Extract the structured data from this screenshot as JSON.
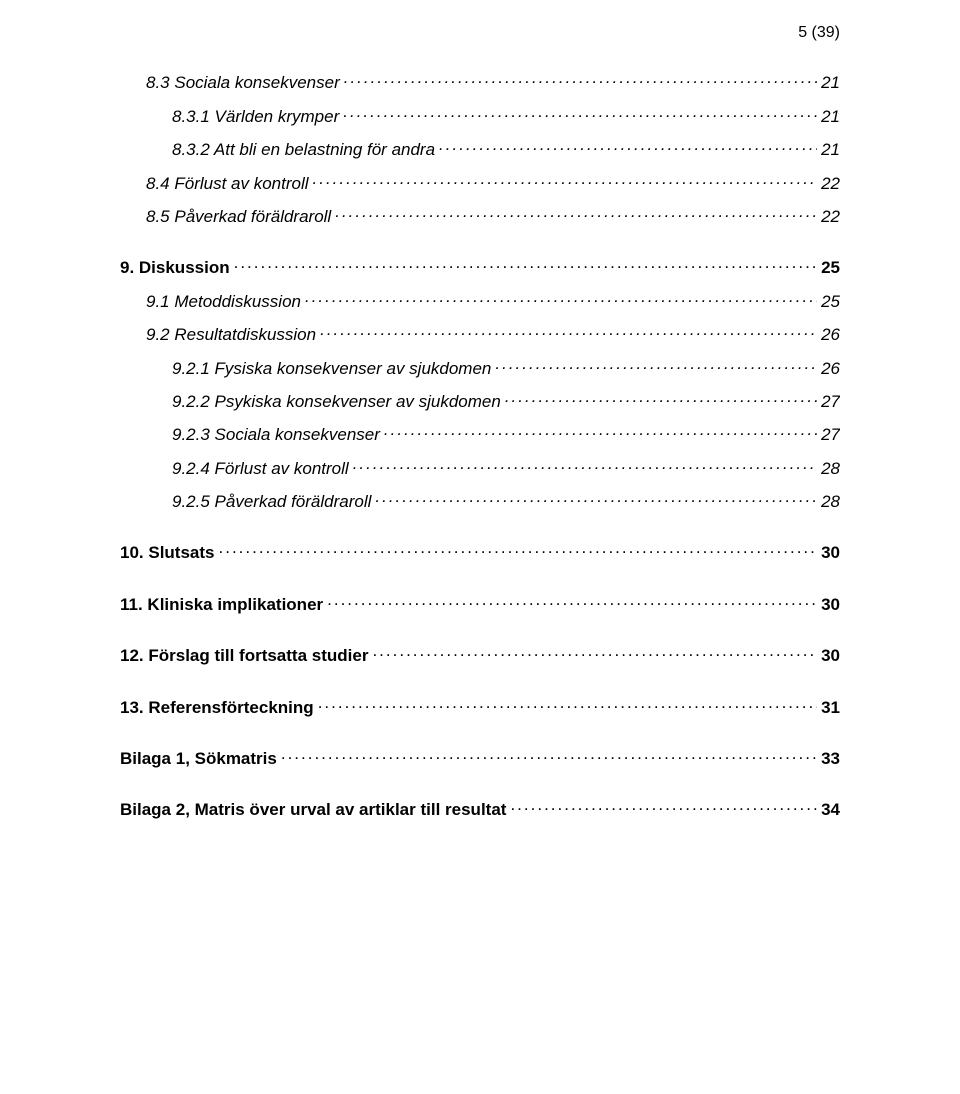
{
  "page_marker": "5 (39)",
  "entries": [
    {
      "level": 2,
      "bold": false,
      "label": "8.3 Sociala konsekvenser",
      "page": "21"
    },
    {
      "level": 3,
      "bold": false,
      "label": "8.3.1 Världen krymper",
      "page": "21"
    },
    {
      "level": 3,
      "bold": false,
      "label": "8.3.2 Att bli en belastning för andra",
      "page": "21"
    },
    {
      "level": 2,
      "bold": false,
      "label": "8.4 Förlust av kontroll",
      "page": "22"
    },
    {
      "level": 2,
      "bold": false,
      "label": "8.5 Påverkad föräldraroll",
      "page": "22"
    },
    {
      "level": 1,
      "bold": true,
      "label": "9. Diskussion",
      "page": "25"
    },
    {
      "level": 2,
      "bold": false,
      "label": "9.1 Metoddiskussion",
      "page": "25"
    },
    {
      "level": 2,
      "bold": false,
      "label": "9.2 Resultatdiskussion",
      "page": "26"
    },
    {
      "level": 3,
      "bold": false,
      "label": "9.2.1 Fysiska konsekvenser av sjukdomen",
      "page": "26"
    },
    {
      "level": 3,
      "bold": false,
      "label": "9.2.2 Psykiska konsekvenser av sjukdomen",
      "page": "27"
    },
    {
      "level": 3,
      "bold": false,
      "label": "9.2.3 Sociala konsekvenser",
      "page": "27"
    },
    {
      "level": 3,
      "bold": false,
      "label": "9.2.4 Förlust av kontroll",
      "page": "28"
    },
    {
      "level": 3,
      "bold": false,
      "label": "9.2.5 Påverkad föräldraroll",
      "page": "28"
    },
    {
      "level": 1,
      "bold": true,
      "label": "10. Slutsats",
      "page": "30"
    },
    {
      "level": 1,
      "bold": true,
      "label": "11. Kliniska implikationer",
      "page": "30"
    },
    {
      "level": 1,
      "bold": true,
      "label": "12. Förslag till fortsatta studier",
      "page": "30"
    },
    {
      "level": 1,
      "bold": true,
      "label": "13. Referensförteckning",
      "page": "31"
    },
    {
      "level": 1,
      "bold": true,
      "label": "Bilaga 1, Sökmatris",
      "page": "33"
    },
    {
      "level": 1,
      "bold": true,
      "label": "Bilaga 2, Matris över urval av artiklar till resultat",
      "page": "34"
    }
  ]
}
